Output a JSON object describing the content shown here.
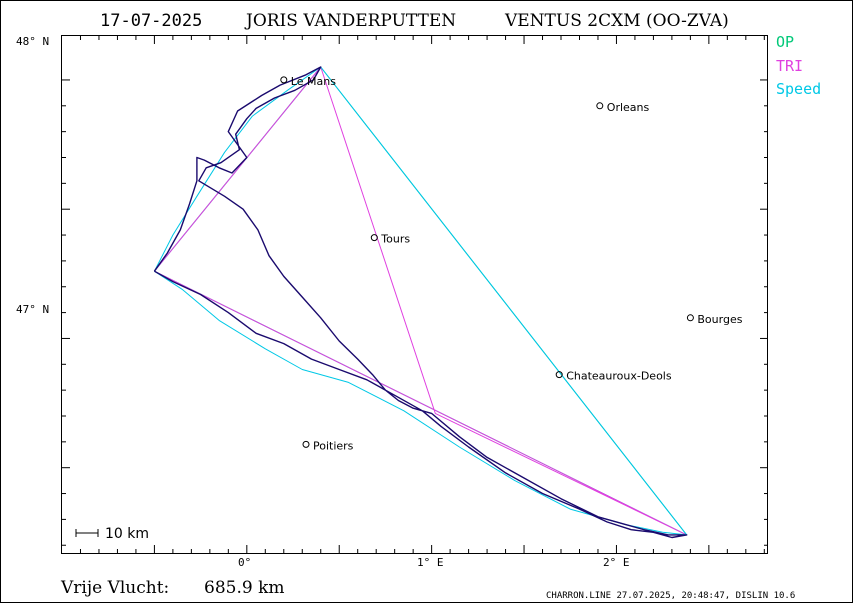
{
  "header": {
    "date": "17-07-2025",
    "pilot": "JORIS VANDERPUTTEN",
    "glider": "VENTUS 2CXM (OO-ZVA)"
  },
  "legend": {
    "items": [
      {
        "label": "OP",
        "color": "#00c878"
      },
      {
        "label": "TRI",
        "color": "#e040e0"
      },
      {
        "label": "Speed",
        "color": "#00c8e6"
      }
    ]
  },
  "axes": {
    "lat_labels": [
      "48° N",
      "47° N"
    ],
    "lon_labels": [
      "0°",
      "1° E",
      "2° E"
    ]
  },
  "scale": {
    "label": "10 km"
  },
  "summary": {
    "label": "Vrije Vlucht:",
    "value": "685.9 km"
  },
  "footer": {
    "text": "CHARRON.LINE 27.07.2025, 20:48:47, DISLIN 10.6"
  },
  "cities": [
    {
      "name": "Le Mans",
      "lon": 0.2,
      "lat": 48.0
    },
    {
      "name": "Orleans",
      "lon": 1.91,
      "lat": 47.9
    },
    {
      "name": "Tours",
      "lon": 0.69,
      "lat": 47.39
    },
    {
      "name": "Bourges",
      "lon": 2.4,
      "lat": 47.08
    },
    {
      "name": "Chateauroux-Deols",
      "lon": 1.69,
      "lat": 46.86
    },
    {
      "name": "Poitiers",
      "lon": 0.32,
      "lat": 46.59
    }
  ],
  "chart_data": {
    "type": "line",
    "x_unit": "degrees longitude",
    "y_unit": "degrees latitude",
    "xlim": [
      -1.0,
      2.82
    ],
    "ylim": [
      46.17,
      48.17
    ],
    "turnpoints": [
      {
        "lon": -0.5,
        "lat": 47.26
      },
      {
        "lon": 0.4,
        "lat": 48.05
      },
      {
        "lon": 1.02,
        "lat": 46.71
      },
      {
        "lon": 2.38,
        "lat": 46.24
      }
    ],
    "series": [
      {
        "name": "OP",
        "color": "#00c8aa",
        "points": [
          [
            -0.5,
            47.26
          ],
          [
            0.4,
            48.05
          ],
          [
            2.38,
            46.24
          ],
          [
            -0.5,
            47.26
          ]
        ]
      },
      {
        "name": "TRI",
        "color": "#e040e0",
        "points": [
          [
            -0.5,
            47.26
          ],
          [
            0.4,
            48.05
          ],
          [
            1.02,
            46.71
          ],
          [
            2.38,
            46.24
          ],
          [
            -0.5,
            47.26
          ]
        ]
      },
      {
        "name": "Speed",
        "color": "#00c8e6",
        "points": [
          [
            -0.5,
            47.26
          ],
          [
            -0.4,
            47.4
          ],
          [
            -0.27,
            47.55
          ],
          [
            -0.12,
            47.72
          ],
          [
            0.03,
            47.86
          ],
          [
            0.22,
            47.96
          ],
          [
            0.4,
            48.05
          ],
          [
            2.38,
            46.24
          ],
          [
            2.25,
            46.25
          ],
          [
            2.05,
            46.28
          ],
          [
            1.75,
            46.34
          ],
          [
            1.45,
            46.45
          ],
          [
            1.15,
            46.58
          ],
          [
            0.85,
            46.72
          ],
          [
            0.55,
            46.83
          ],
          [
            0.3,
            46.88
          ],
          [
            0.1,
            46.96
          ],
          [
            -0.15,
            47.07
          ],
          [
            -0.35,
            47.19
          ],
          [
            -0.5,
            47.26
          ]
        ]
      },
      {
        "name": "track",
        "color": "#1a0a6e",
        "points": [
          [
            -0.5,
            47.26
          ],
          [
            -0.43,
            47.33
          ],
          [
            -0.36,
            47.42
          ],
          [
            -0.31,
            47.52
          ],
          [
            -0.27,
            47.61
          ],
          [
            -0.27,
            47.7
          ],
          [
            -0.23,
            47.69
          ],
          [
            -0.15,
            47.66
          ],
          [
            -0.08,
            47.64
          ],
          [
            0.0,
            47.7
          ],
          [
            -0.1,
            47.8
          ],
          [
            -0.05,
            47.88
          ],
          [
            0.08,
            47.94
          ],
          [
            0.18,
            47.98
          ],
          [
            0.32,
            48.02
          ],
          [
            0.4,
            48.05
          ],
          [
            0.36,
            48.0
          ],
          [
            0.26,
            47.96
          ],
          [
            0.15,
            47.93
          ],
          [
            0.05,
            47.89
          ],
          [
            0.0,
            47.85
          ],
          [
            -0.06,
            47.79
          ],
          [
            -0.04,
            47.73
          ],
          [
            -0.14,
            47.68
          ],
          [
            -0.22,
            47.66
          ],
          [
            -0.26,
            47.61
          ],
          [
            -0.12,
            47.55
          ],
          [
            -0.02,
            47.5
          ],
          [
            0.06,
            47.42
          ],
          [
            0.12,
            47.32
          ],
          [
            0.2,
            47.24
          ],
          [
            0.3,
            47.16
          ],
          [
            0.4,
            47.08
          ],
          [
            0.5,
            46.99
          ],
          [
            0.6,
            46.92
          ],
          [
            0.68,
            46.86
          ],
          [
            0.75,
            46.8
          ],
          [
            0.82,
            46.76
          ],
          [
            0.9,
            46.73
          ],
          [
            1.0,
            46.71
          ],
          [
            1.15,
            46.62
          ],
          [
            1.3,
            46.54
          ],
          [
            1.5,
            46.46
          ],
          [
            1.7,
            46.38
          ],
          [
            1.9,
            46.31
          ],
          [
            2.05,
            46.28
          ],
          [
            2.15,
            46.26
          ],
          [
            2.28,
            46.24
          ],
          [
            2.38,
            46.24
          ],
          [
            2.3,
            46.23
          ],
          [
            2.2,
            46.25
          ],
          [
            2.08,
            46.26
          ],
          [
            1.95,
            46.29
          ],
          [
            1.8,
            46.34
          ],
          [
            1.6,
            46.4
          ],
          [
            1.4,
            46.48
          ],
          [
            1.2,
            46.58
          ],
          [
            1.05,
            46.66
          ],
          [
            0.95,
            46.72
          ],
          [
            0.8,
            46.78
          ],
          [
            0.65,
            46.84
          ],
          [
            0.5,
            46.88
          ],
          [
            0.35,
            46.92
          ],
          [
            0.2,
            46.98
          ],
          [
            0.05,
            47.02
          ],
          [
            -0.1,
            47.1
          ],
          [
            -0.25,
            47.17
          ],
          [
            -0.4,
            47.22
          ],
          [
            -0.5,
            47.26
          ]
        ]
      }
    ]
  }
}
